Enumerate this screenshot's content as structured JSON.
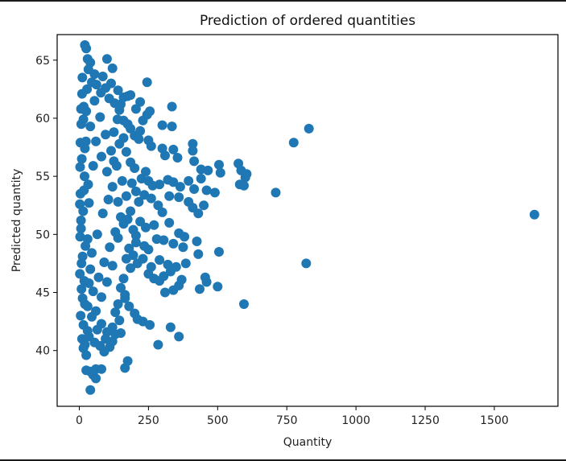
{
  "chart_data": {
    "type": "scatter",
    "title": "Prediction of ordered quantities",
    "xlabel": "Quantity",
    "ylabel": "Predicted quantity",
    "xlim": [
      -80,
      1730
    ],
    "ylim": [
      35.2,
      67.2
    ],
    "xticks": [
      0,
      250,
      500,
      750,
      1000,
      1250,
      1500
    ],
    "yticks": [
      40,
      45,
      50,
      55,
      60,
      65
    ],
    "grid": false,
    "marker_color": "#1f77b4",
    "series": [
      {
        "points": [
          [
            20,
            66.3
          ],
          [
            25,
            66.0
          ],
          [
            30,
            65.1
          ],
          [
            40,
            64.8
          ],
          [
            100,
            65.1
          ],
          [
            120,
            64.3
          ],
          [
            55,
            63.8
          ],
          [
            85,
            63.6
          ],
          [
            115,
            63.0
          ],
          [
            140,
            62.4
          ],
          [
            245,
            63.1
          ],
          [
            160,
            61.8
          ],
          [
            175,
            61.9
          ],
          [
            185,
            62.0
          ],
          [
            150,
            61.2
          ],
          [
            205,
            60.8
          ],
          [
            220,
            61.4
          ],
          [
            255,
            60.6
          ],
          [
            335,
            61.0
          ],
          [
            300,
            59.4
          ],
          [
            230,
            59.8
          ],
          [
            245,
            60.3
          ],
          [
            160,
            59.8
          ],
          [
            175,
            59.5
          ],
          [
            185,
            59.1
          ],
          [
            220,
            58.9
          ],
          [
            200,
            58.5
          ],
          [
            215,
            58.2
          ],
          [
            250,
            58.1
          ],
          [
            335,
            59.3
          ],
          [
            260,
            57.6
          ],
          [
            300,
            57.4
          ],
          [
            310,
            56.8
          ],
          [
            340,
            57.3
          ],
          [
            355,
            56.6
          ],
          [
            410,
            57.8
          ],
          [
            410,
            57.2
          ],
          [
            415,
            56.3
          ],
          [
            440,
            55.6
          ],
          [
            465,
            55.5
          ],
          [
            505,
            56.0
          ],
          [
            510,
            55.3
          ],
          [
            575,
            56.1
          ],
          [
            585,
            55.5
          ],
          [
            600,
            54.9
          ],
          [
            605,
            55.2
          ],
          [
            580,
            54.3
          ],
          [
            595,
            54.2
          ],
          [
            240,
            55.4
          ],
          [
            225,
            54.8
          ],
          [
            250,
            54.6
          ],
          [
            265,
            54.2
          ],
          [
            290,
            54.3
          ],
          [
            320,
            54.7
          ],
          [
            340,
            54.5
          ],
          [
            365,
            54.1
          ],
          [
            395,
            54.6
          ],
          [
            415,
            53.9
          ],
          [
            440,
            54.8
          ],
          [
            460,
            53.8
          ],
          [
            490,
            53.6
          ],
          [
            710,
            53.6
          ],
          [
            830,
            59.1
          ],
          [
            775,
            57.9
          ],
          [
            1645,
            51.7
          ],
          [
            820,
            47.5
          ],
          [
            235,
            53.4
          ],
          [
            260,
            53.1
          ],
          [
            285,
            52.5
          ],
          [
            300,
            51.9
          ],
          [
            325,
            53.3
          ],
          [
            360,
            53.2
          ],
          [
            395,
            52.8
          ],
          [
            410,
            52.3
          ],
          [
            430,
            51.8
          ],
          [
            450,
            52.5
          ],
          [
            220,
            51.1
          ],
          [
            240,
            50.6
          ],
          [
            270,
            50.8
          ],
          [
            325,
            51.0
          ],
          [
            360,
            50.1
          ],
          [
            380,
            49.8
          ],
          [
            205,
            49.3
          ],
          [
            235,
            49.0
          ],
          [
            250,
            48.7
          ],
          [
            280,
            49.6
          ],
          [
            305,
            49.5
          ],
          [
            340,
            49.2
          ],
          [
            375,
            48.9
          ],
          [
            425,
            49.4
          ],
          [
            430,
            48.3
          ],
          [
            505,
            48.5
          ],
          [
            195,
            48.2
          ],
          [
            210,
            47.5
          ],
          [
            230,
            47.9
          ],
          [
            260,
            47.2
          ],
          [
            290,
            47.8
          ],
          [
            320,
            47.4
          ],
          [
            350,
            47.2
          ],
          [
            385,
            47.5
          ],
          [
            250,
            46.6
          ],
          [
            270,
            46.2
          ],
          [
            290,
            46.0
          ],
          [
            305,
            46.4
          ],
          [
            330,
            46.8
          ],
          [
            370,
            46.1
          ],
          [
            455,
            46.3
          ],
          [
            460,
            45.9
          ],
          [
            500,
            45.5
          ],
          [
            310,
            45.0
          ],
          [
            340,
            45.2
          ],
          [
            360,
            45.6
          ],
          [
            435,
            45.3
          ],
          [
            595,
            44.0
          ],
          [
            165,
            44.5
          ],
          [
            180,
            43.8
          ],
          [
            200,
            43.2
          ],
          [
            210,
            42.7
          ],
          [
            230,
            42.5
          ],
          [
            255,
            42.2
          ],
          [
            330,
            42.0
          ],
          [
            360,
            41.2
          ],
          [
            285,
            40.5
          ],
          [
            150,
            41.5
          ],
          [
            120,
            40.8
          ],
          [
            90,
            39.9
          ],
          [
            175,
            39.1
          ],
          [
            165,
            38.5
          ],
          [
            60,
            38.4
          ],
          [
            80,
            38.4
          ],
          [
            50,
            37.9
          ],
          [
            40,
            38.2
          ],
          [
            25,
            38.3
          ],
          [
            60,
            37.6
          ],
          [
            40,
            36.6
          ],
          [
            15,
            40.2
          ],
          [
            10,
            41.0
          ],
          [
            20,
            40.5
          ],
          [
            35,
            41.2
          ],
          [
            55,
            40.7
          ],
          [
            75,
            40.4
          ],
          [
            95,
            41.0
          ],
          [
            110,
            40.3
          ],
          [
            130,
            41.4
          ],
          [
            5,
            43.0
          ],
          [
            12,
            44.5
          ],
          [
            18,
            46.0
          ],
          [
            8,
            47.5
          ],
          [
            22,
            49.0
          ],
          [
            6,
            50.5
          ],
          [
            14,
            52.0
          ],
          [
            4,
            53.5
          ],
          [
            19,
            55.0
          ],
          [
            9,
            56.5
          ],
          [
            24,
            58.0
          ],
          [
            7,
            59.5
          ],
          [
            16,
            61.0
          ],
          [
            28,
            62.5
          ],
          [
            11,
            63.5
          ],
          [
            33,
            64.2
          ],
          [
            45,
            63.1
          ],
          [
            62,
            62.9
          ],
          [
            78,
            62.2
          ],
          [
            95,
            62.6
          ],
          [
            108,
            61.7
          ],
          [
            128,
            61.3
          ],
          [
            145,
            60.7
          ],
          [
            138,
            59.9
          ],
          [
            125,
            58.8
          ],
          [
            160,
            58.3
          ],
          [
            170,
            57.1
          ],
          [
            185,
            56.2
          ],
          [
            200,
            55.7
          ],
          [
            190,
            54.4
          ],
          [
            205,
            53.7
          ],
          [
            215,
            52.8
          ],
          [
            185,
            52.0
          ],
          [
            175,
            51.3
          ],
          [
            195,
            50.4
          ],
          [
            205,
            49.9
          ],
          [
            180,
            48.8
          ],
          [
            170,
            47.9
          ],
          [
            185,
            47.1
          ],
          [
            160,
            46.2
          ],
          [
            150,
            45.4
          ],
          [
            165,
            44.8
          ],
          [
            140,
            44.0
          ],
          [
            130,
            43.3
          ],
          [
            145,
            42.6
          ],
          [
            120,
            42.0
          ],
          [
            100,
            41.6
          ],
          [
            80,
            42.3
          ],
          [
            65,
            41.8
          ],
          [
            45,
            42.9
          ],
          [
            30,
            43.8
          ],
          [
            50,
            45.1
          ],
          [
            70,
            46.3
          ],
          [
            90,
            47.6
          ],
          [
            110,
            48.9
          ],
          [
            130,
            50.2
          ],
          [
            150,
            51.5
          ],
          [
            140,
            52.8
          ],
          [
            120,
            54.1
          ],
          [
            100,
            55.4
          ],
          [
            80,
            56.7
          ],
          [
            60,
            58.0
          ],
          [
            40,
            59.3
          ],
          [
            25,
            60.6
          ],
          [
            55,
            61.5
          ],
          [
            75,
            60.1
          ],
          [
            95,
            58.6
          ],
          [
            115,
            57.2
          ],
          [
            135,
            55.9
          ],
          [
            155,
            54.6
          ],
          [
            170,
            53.3
          ],
          [
            160,
            50.9
          ],
          [
            140,
            49.7
          ],
          [
            120,
            47.3
          ],
          [
            100,
            45.9
          ],
          [
            80,
            44.6
          ],
          [
            60,
            43.4
          ],
          [
            35,
            45.8
          ],
          [
            45,
            48.4
          ],
          [
            65,
            50.0
          ],
          [
            85,
            51.8
          ],
          [
            105,
            53.0
          ],
          [
            125,
            56.3
          ],
          [
            145,
            57.8
          ],
          [
            35,
            52.7
          ],
          [
            50,
            55.9
          ],
          [
            30,
            49.6
          ],
          [
            40,
            47.0
          ],
          [
            20,
            44.0
          ],
          [
            15,
            42.2
          ],
          [
            25,
            39.6
          ],
          [
            30,
            41.7
          ],
          [
            20,
            57.4
          ],
          [
            15,
            59.9
          ],
          [
            10,
            62.1
          ],
          [
            32,
            54.3
          ],
          [
            8,
            45.3
          ],
          [
            12,
            48.1
          ],
          [
            6,
            51.2
          ],
          [
            17,
            53.8
          ],
          [
            3,
            49.8
          ],
          [
            2,
            46.6
          ],
          [
            3,
            55.8
          ],
          [
            4,
            57.9
          ],
          [
            6,
            60.8
          ],
          [
            2,
            52.6
          ]
        ]
      }
    ]
  }
}
